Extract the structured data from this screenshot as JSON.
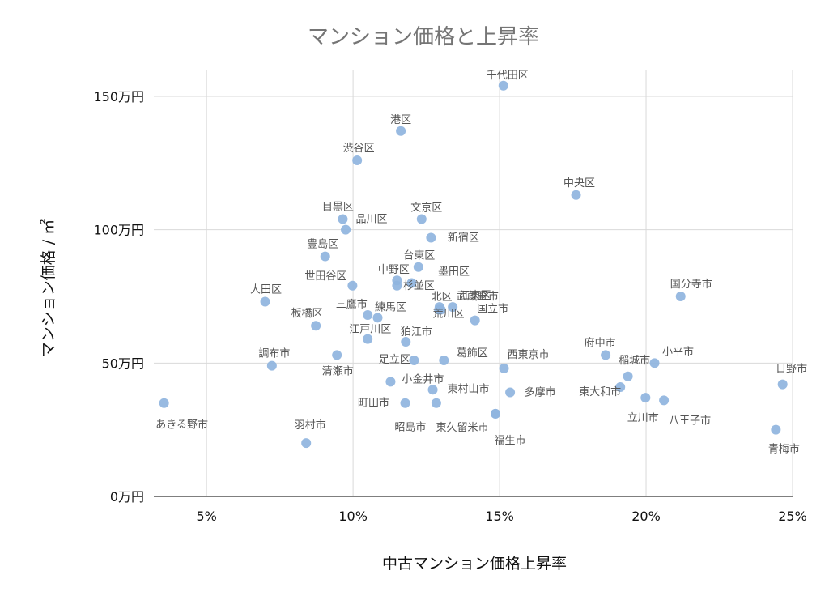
{
  "chart_data": {
    "type": "scatter",
    "title": "マンション価格と上昇率",
    "xlabel": "中古マンション価格上昇率",
    "ylabel": "マンション価格 / ㎡",
    "xlim": [
      0.032,
      0.25
    ],
    "ylim": [
      0,
      1600000
    ],
    "x_ticks": [
      0.05,
      0.1,
      0.15,
      0.2,
      0.25
    ],
    "x_tick_labels": [
      "5%",
      "10%",
      "15%",
      "20%",
      "25%"
    ],
    "y_ticks": [
      0,
      500000,
      1000000,
      1500000
    ],
    "y_tick_labels": [
      "0万円",
      "50万円",
      "100万円",
      "150万円"
    ],
    "grid": true,
    "legend": "none",
    "point_color": "#8fb4de",
    "points": [
      {
        "name": "千代田区",
        "x": 0.1513,
        "y": 1540000
      },
      {
        "name": "港区",
        "x": 0.1163,
        "y": 1370000
      },
      {
        "name": "渋谷区",
        "x": 0.1014,
        "y": 1260000
      },
      {
        "name": "中央区",
        "x": 0.1761,
        "y": 1130000
      },
      {
        "name": "目黒区",
        "x": 0.0965,
        "y": 1040000
      },
      {
        "name": "文京区",
        "x": 0.1234,
        "y": 1040000
      },
      {
        "name": "品川区",
        "x": 0.0975,
        "y": 1000000
      },
      {
        "name": "新宿区",
        "x": 0.1266,
        "y": 970000
      },
      {
        "name": "豊島区",
        "x": 0.0905,
        "y": 900000
      },
      {
        "name": "台東区",
        "x": 0.1223,
        "y": 860000
      },
      {
        "name": "中野区",
        "x": 0.115,
        "y": 810000
      },
      {
        "name": "墨田区",
        "x": 0.12,
        "y": 800000
      },
      {
        "name": "世田谷区",
        "x": 0.0998,
        "y": 790000
      },
      {
        "name": "杉並区",
        "x": 0.115,
        "y": 790000
      },
      {
        "name": "大田区",
        "x": 0.07,
        "y": 730000
      },
      {
        "name": "国分寺市",
        "x": 0.2118,
        "y": 750000
      },
      {
        "name": "武蔵野市",
        "x": 0.1295,
        "y": 710000
      },
      {
        "name": "江東区",
        "x": 0.134,
        "y": 710000
      },
      {
        "name": "北区",
        "x": 0.13,
        "y": 700000
      },
      {
        "name": "国立市",
        "x": 0.1416,
        "y": 660000
      },
      {
        "name": "板橋区",
        "x": 0.0873,
        "y": 640000
      },
      {
        "name": "三鷹市",
        "x": 0.105,
        "y": 680000
      },
      {
        "name": "練馬区",
        "x": 0.1084,
        "y": 670000
      },
      {
        "name": "荒川区",
        "x": 0.1293,
        "y": 700000
      },
      {
        "name": "江戸川区",
        "x": 0.105,
        "y": 590000
      },
      {
        "name": "狛江市",
        "x": 0.118,
        "y": 580000
      },
      {
        "name": "府中市",
        "x": 0.1862,
        "y": 530000
      },
      {
        "name": "調布市",
        "x": 0.0723,
        "y": 490000
      },
      {
        "name": "清瀬市",
        "x": 0.0945,
        "y": 530000
      },
      {
        "name": "足立区",
        "x": 0.1208,
        "y": 510000
      },
      {
        "name": "葛飾区",
        "x": 0.131,
        "y": 510000
      },
      {
        "name": "西東京市",
        "x": 0.1515,
        "y": 480000
      },
      {
        "name": "小平市",
        "x": 0.2029,
        "y": 500000
      },
      {
        "name": "稲城市",
        "x": 0.1938,
        "y": 450000
      },
      {
        "name": "日野市",
        "x": 0.2466,
        "y": 420000
      },
      {
        "name": "小金井市",
        "x": 0.1128,
        "y": 430000
      },
      {
        "name": "東村山市",
        "x": 0.1272,
        "y": 400000
      },
      {
        "name": "多摩市",
        "x": 0.1536,
        "y": 390000
      },
      {
        "name": "東大和市",
        "x": 0.1912,
        "y": 410000
      },
      {
        "name": "町田市",
        "x": 0.1178,
        "y": 350000
      },
      {
        "name": "立川市",
        "x": 0.1998,
        "y": 370000
      },
      {
        "name": "八王子市",
        "x": 0.2061,
        "y": 360000
      },
      {
        "name": "あきる野市",
        "x": 0.0355,
        "y": 350000
      },
      {
        "name": "昭島市",
        "x": 0.1284,
        "y": 350000
      },
      {
        "name": "東久留米市",
        "x": 0.1486,
        "y": 310000
      },
      {
        "name": "福生市",
        "x": 0.1486,
        "y": 310000
      },
      {
        "name": "羽村市",
        "x": 0.084,
        "y": 200000
      },
      {
        "name": "青梅市",
        "x": 0.2443,
        "y": 250000
      }
    ]
  }
}
